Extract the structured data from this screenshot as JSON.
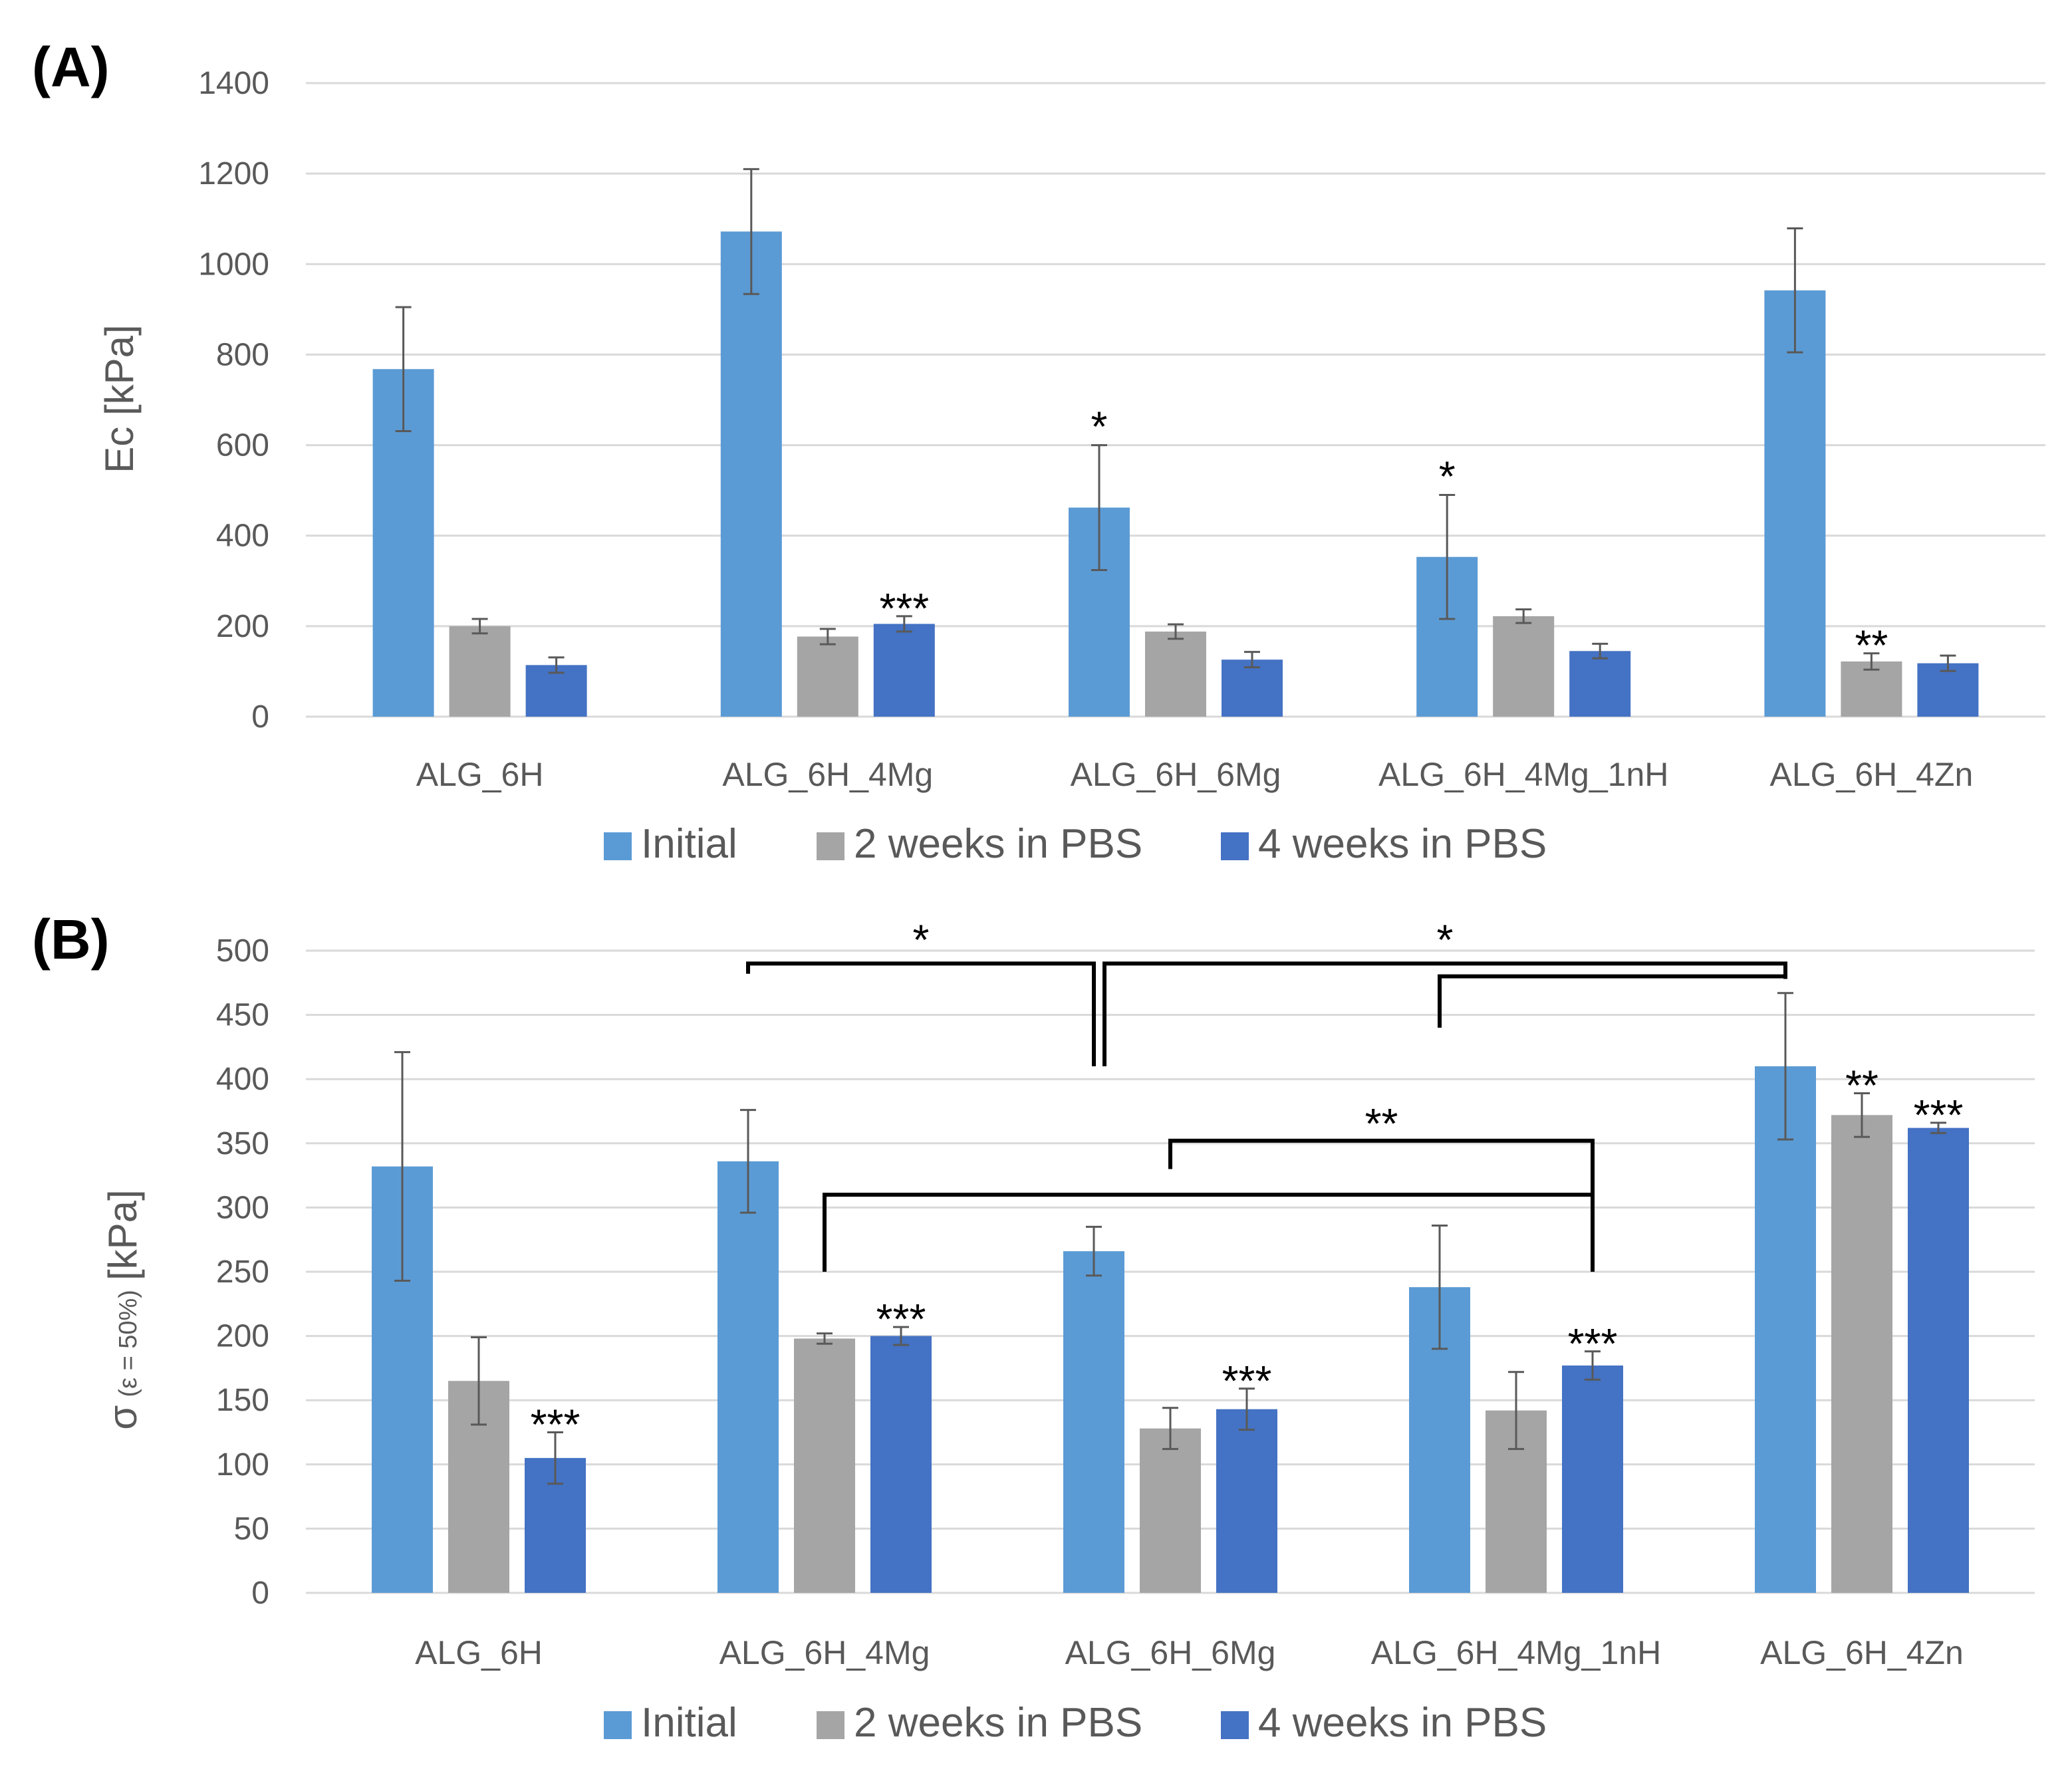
{
  "colors": {
    "initial": "#5b9bd5",
    "week2": "#a5a5a5",
    "week4": "#4472c4",
    "grid": "#d9d9d9",
    "text": "#595959"
  },
  "chart_data": [
    {
      "panel_label": "(A)",
      "type": "bar",
      "ylabel": "Ec [kPa]",
      "ylim": [
        0,
        1400
      ],
      "yticks": [
        0,
        200,
        400,
        600,
        800,
        1000,
        1200,
        1400
      ],
      "categories": [
        "ALG_6H",
        "ALG_6H_4Mg",
        "ALG_6H_6Mg",
        "ALG_6H_4Mg_1nH",
        "ALG_6H_4Zn"
      ],
      "series": [
        {
          "name": "Initial",
          "color": "#5b9bd5",
          "values": [
            768,
            1072,
            462,
            353,
            942
          ],
          "errors": [
            137,
            138,
            138,
            137,
            137
          ]
        },
        {
          "name": "2 weeks in PBS",
          "color": "#a5a5a5",
          "values": [
            200,
            177,
            188,
            222,
            122
          ],
          "errors": [
            16,
            17,
            16,
            15,
            18
          ]
        },
        {
          "name": "4 weeks in PBS",
          "color": "#4472c4",
          "values": [
            114,
            205,
            126,
            145,
            118
          ],
          "errors": [
            17,
            17,
            17,
            16,
            17
          ]
        }
      ],
      "annotations": [
        {
          "category": 1,
          "series": 2,
          "text": "***"
        },
        {
          "category": 2,
          "series": 0,
          "text": "*"
        },
        {
          "category": 3,
          "series": 0,
          "text": "*"
        },
        {
          "category": 4,
          "series": 1,
          "text": "**"
        }
      ],
      "brackets": []
    },
    {
      "panel_label": "(B)",
      "type": "bar",
      "ylabel_main": "σ",
      "ylabel_sub": "(ε = 50%)",
      "ylabel_unit": "[kPa]",
      "ylim": [
        0,
        500
      ],
      "yticks": [
        0,
        50,
        100,
        150,
        200,
        250,
        300,
        350,
        400,
        450,
        500
      ],
      "categories": [
        "ALG_6H",
        "ALG_6H_4Mg",
        "ALG_6H_6Mg",
        "ALG_6H_4Mg_1nH",
        "ALG_6H_4Zn"
      ],
      "series": [
        {
          "name": "Initial",
          "color": "#5b9bd5",
          "values": [
            332,
            336,
            266,
            238,
            410
          ],
          "errors": [
            89,
            40,
            19,
            48,
            57
          ]
        },
        {
          "name": "2 weeks in PBS",
          "color": "#a5a5a5",
          "values": [
            165,
            198,
            128,
            142,
            372
          ],
          "errors": [
            34,
            4,
            16,
            30,
            17
          ]
        },
        {
          "name": "4 weeks in PBS",
          "color": "#4472c4",
          "values": [
            105,
            200,
            143,
            177,
            362
          ],
          "errors": [
            20,
            7,
            16,
            11,
            4
          ]
        }
      ],
      "annotations": [
        {
          "category": 0,
          "series": 2,
          "text": "***"
        },
        {
          "category": 1,
          "series": 2,
          "text": "***"
        },
        {
          "category": 2,
          "series": 2,
          "text": "***"
        },
        {
          "category": 3,
          "series": 2,
          "text": "***"
        },
        {
          "category": 4,
          "series": 1,
          "text": "**"
        },
        {
          "category": 4,
          "series": 2,
          "text": "***"
        }
      ],
      "brackets": [
        {
          "from_cat": 1,
          "from_ser": 0,
          "to_cat": 2,
          "to_ser": 0,
          "level": 490,
          "left_end": 482,
          "right_end": 410,
          "text": "*"
        },
        {
          "from_cat": 2,
          "from_ser": 0,
          "to_cat": 4,
          "to_ser": 0,
          "level": 490,
          "left_end": 410,
          "right_end": 478,
          "text": "*"
        },
        {
          "from_cat": 3,
          "from_ser": 0,
          "to_cat": 4,
          "to_ser": 0,
          "level": 480,
          "left_end": 440,
          "right_end": 480,
          "text": ""
        },
        {
          "from_cat": 2,
          "from_ser": 1,
          "to_cat": 3,
          "to_ser": 2,
          "level": 352,
          "left_end": 330,
          "right_end": 250,
          "text": "**"
        },
        {
          "from_cat": 1,
          "from_ser": 1,
          "to_cat": 3,
          "to_ser": 2,
          "level": 310,
          "left_end": 250,
          "right_end": 250,
          "text": ""
        }
      ]
    }
  ]
}
